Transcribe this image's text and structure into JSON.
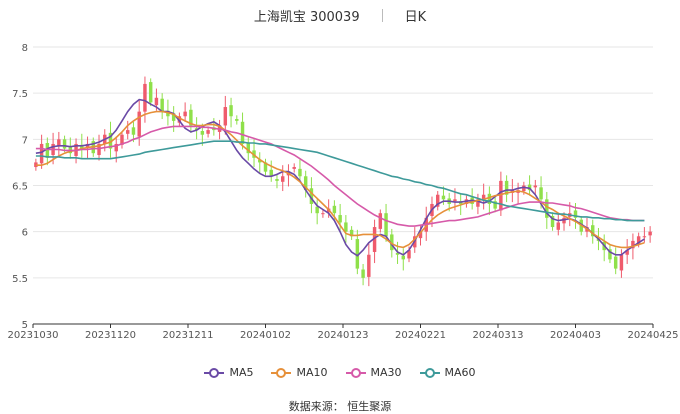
{
  "header": {
    "stock": "上海凯宝 300039",
    "period": "日K"
  },
  "source": "数据来源： 恒生聚源",
  "colors": {
    "up": "#ef5b6c",
    "down": "#8fe04a",
    "ma5": "#6a4aa6",
    "ma10": "#e6903a",
    "ma30": "#d65aa9",
    "ma60": "#3e9a9a",
    "grid": "#e6e6e6"
  },
  "legend": [
    {
      "key": "ma5",
      "label": "MA5"
    },
    {
      "key": "ma10",
      "label": "MA10"
    },
    {
      "key": "ma30",
      "label": "MA30"
    },
    {
      "key": "ma60",
      "label": "MA60"
    }
  ],
  "chart_data": {
    "type": "candlestick",
    "ylim": [
      5,
      8
    ],
    "yticks": [
      "5",
      "5.5",
      "6",
      "6.5",
      "7",
      "7.5",
      "8"
    ],
    "xticks": [
      "20231030",
      "20231120",
      "20231211",
      "20240102",
      "20240123",
      "20240221",
      "20240313",
      "20240403",
      "20240425"
    ],
    "close": [
      6.75,
      6.95,
      6.8,
      6.95,
      7.0,
      6.9,
      6.85,
      6.95,
      6.9,
      6.95,
      6.85,
      6.95,
      7.05,
      6.9,
      6.95,
      7.05,
      7.1,
      7.05,
      7.3,
      7.6,
      7.4,
      7.45,
      7.3,
      7.25,
      7.2,
      7.25,
      7.3,
      7.15,
      7.1,
      7.05,
      7.1,
      7.1,
      7.15,
      7.35,
      7.25,
      7.2,
      6.95,
      6.85,
      6.8,
      6.75,
      6.65,
      6.6,
      6.55,
      6.6,
      6.65,
      6.7,
      6.6,
      6.45,
      6.3,
      6.2,
      6.2,
      6.25,
      6.2,
      6.1,
      6.0,
      5.95,
      5.6,
      5.5,
      5.75,
      6.05,
      6.2,
      5.95,
      5.8,
      5.75,
      5.7,
      5.8,
      5.95,
      6.0,
      6.15,
      6.3,
      6.4,
      6.35,
      6.3,
      6.35,
      6.3,
      6.35,
      6.3,
      6.35,
      6.4,
      6.3,
      6.25,
      6.55,
      6.4,
      6.45,
      6.45,
      6.5,
      6.45,
      6.5,
      6.35,
      6.15,
      6.05,
      6.1,
      6.15,
      6.2,
      6.15,
      6.0,
      6.05,
      5.95,
      5.9,
      5.8,
      5.7,
      5.6,
      5.75,
      5.8,
      5.9,
      5.95,
      5.95,
      6.0
    ],
    "ma5": [
      6.85,
      6.86,
      6.9,
      6.92,
      6.93,
      6.93,
      6.92,
      6.93,
      6.93,
      6.94,
      6.95,
      6.97,
      7.0,
      7.03,
      7.1,
      7.2,
      7.3,
      7.38,
      7.43,
      7.42,
      7.38,
      7.35,
      7.3,
      7.3,
      7.28,
      7.2,
      7.12,
      7.08,
      7.1,
      7.14,
      7.17,
      7.19,
      7.15,
      7.08,
      6.98,
      6.88,
      6.8,
      6.74,
      6.68,
      6.63,
      6.6,
      6.6,
      6.62,
      6.65,
      6.65,
      6.62,
      6.55,
      6.45,
      6.36,
      6.28,
      6.24,
      6.2,
      6.12,
      6.0,
      5.86,
      5.78,
      5.74,
      5.8,
      5.88,
      5.93,
      5.97,
      5.95,
      5.86,
      5.78,
      5.75,
      5.8,
      5.9,
      6.02,
      6.14,
      6.24,
      6.3,
      6.33,
      6.33,
      6.32,
      6.32,
      6.33,
      6.34,
      6.33,
      6.31,
      6.33,
      6.38,
      6.43,
      6.45,
      6.45,
      6.47,
      6.48,
      6.47,
      6.4,
      6.3,
      6.2,
      6.14,
      6.12,
      6.13,
      6.14,
      6.12,
      6.08,
      6.04,
      5.98,
      5.92,
      5.85,
      5.78,
      5.75,
      5.75,
      5.8,
      5.84,
      5.88,
      5.92
    ],
    "ma10": [
      6.72,
      6.72,
      6.74,
      6.78,
      6.82,
      6.85,
      6.87,
      6.88,
      6.9,
      6.91,
      6.92,
      6.93,
      6.95,
      6.97,
      7.02,
      7.08,
      7.15,
      7.2,
      7.24,
      7.27,
      7.29,
      7.3,
      7.3,
      7.29,
      7.27,
      7.23,
      7.2,
      7.17,
      7.15,
      7.15,
      7.16,
      7.16,
      7.14,
      7.1,
      7.05,
      6.99,
      6.93,
      6.88,
      6.83,
      6.78,
      6.74,
      6.71,
      6.68,
      6.66,
      6.63,
      6.59,
      6.54,
      6.48,
      6.42,
      6.36,
      6.3,
      6.24,
      6.16,
      6.07,
      5.98,
      5.96,
      5.96,
      5.97,
      5.97,
      5.97,
      5.96,
      5.92,
      5.87,
      5.84,
      5.83,
      5.86,
      5.92,
      5.99,
      6.06,
      6.13,
      6.18,
      6.22,
      6.25,
      6.27,
      6.29,
      6.31,
      6.32,
      6.34,
      6.35,
      6.37,
      6.39,
      6.4,
      6.42,
      6.43,
      6.44,
      6.43,
      6.4,
      6.36,
      6.32,
      6.27,
      6.24,
      6.2,
      6.17,
      6.14,
      6.11,
      6.07,
      6.03,
      5.98,
      5.94,
      5.9,
      5.86,
      5.84,
      5.83,
      5.83,
      5.84,
      5.86,
      5.88
    ],
    "ma30": [
      6.9,
      6.9,
      6.89,
      6.89,
      6.89,
      6.88,
      6.88,
      6.88,
      6.89,
      6.89,
      6.9,
      6.9,
      6.91,
      6.92,
      6.93,
      6.95,
      6.97,
      7.0,
      7.02,
      7.05,
      7.08,
      7.1,
      7.12,
      7.13,
      7.14,
      7.14,
      7.14,
      7.14,
      7.14,
      7.13,
      7.13,
      7.12,
      7.11,
      7.1,
      7.08,
      7.07,
      7.05,
      7.03,
      7.01,
      6.99,
      6.97,
      6.95,
      6.92,
      6.89,
      6.86,
      6.83,
      6.79,
      6.75,
      6.71,
      6.66,
      6.61,
      6.56,
      6.5,
      6.45,
      6.4,
      6.35,
      6.3,
      6.26,
      6.22,
      6.18,
      6.15,
      6.12,
      6.1,
      6.08,
      6.07,
      6.06,
      6.06,
      6.07,
      6.08,
      6.09,
      6.1,
      6.11,
      6.12,
      6.12,
      6.13,
      6.14,
      6.15,
      6.16,
      6.18,
      6.2,
      6.22,
      6.24,
      6.26,
      6.28,
      6.3,
      6.31,
      6.32,
      6.32,
      6.32,
      6.31,
      6.31,
      6.3,
      6.29,
      6.28,
      6.26,
      6.25,
      6.23,
      6.21,
      6.19,
      6.17,
      6.15,
      6.14,
      6.13,
      6.13,
      6.12,
      6.12,
      6.12
    ],
    "ma60": [
      6.82,
      6.82,
      6.81,
      6.81,
      6.81,
      6.8,
      6.8,
      6.8,
      6.79,
      6.79,
      6.79,
      6.79,
      6.79,
      6.79,
      6.8,
      6.81,
      6.82,
      6.83,
      6.84,
      6.86,
      6.87,
      6.88,
      6.89,
      6.9,
      6.91,
      6.92,
      6.93,
      6.94,
      6.95,
      6.96,
      6.97,
      6.98,
      6.98,
      6.98,
      6.98,
      6.97,
      6.97,
      6.96,
      6.96,
      6.95,
      6.95,
      6.94,
      6.93,
      6.92,
      6.91,
      6.9,
      6.89,
      6.88,
      6.87,
      6.86,
      6.84,
      6.82,
      6.8,
      6.78,
      6.76,
      6.74,
      6.72,
      6.7,
      6.68,
      6.66,
      6.64,
      6.62,
      6.6,
      6.59,
      6.57,
      6.56,
      6.54,
      6.53,
      6.51,
      6.5,
      6.48,
      6.47,
      6.45,
      6.43,
      6.41,
      6.4,
      6.38,
      6.36,
      6.34,
      6.33,
      6.31,
      6.3,
      6.28,
      6.27,
      6.26,
      6.25,
      6.24,
      6.23,
      6.22,
      6.21,
      6.2,
      6.19,
      6.19,
      6.18,
      6.17,
      6.16,
      6.16,
      6.15,
      6.15,
      6.14,
      6.14,
      6.13,
      6.13,
      6.12,
      6.12,
      6.12,
      6.12
    ]
  }
}
